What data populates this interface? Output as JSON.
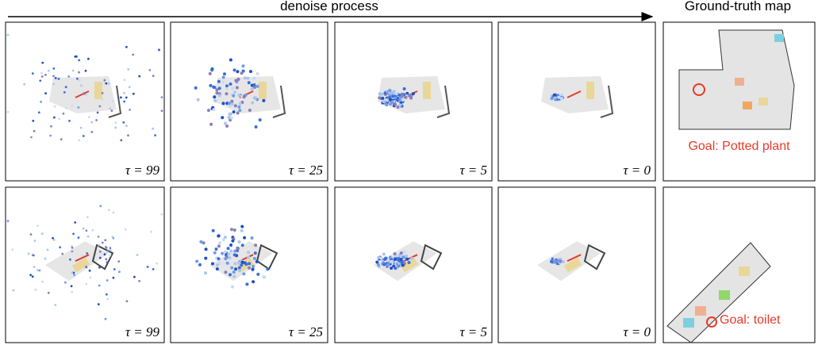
{
  "header": {
    "process_label": "denoise process",
    "gt_label": "Ground-truth map"
  },
  "rows": [
    {
      "panels": [
        {
          "label": "τ = 99"
        },
        {
          "label": "τ = 25"
        },
        {
          "label": "τ = 5"
        },
        {
          "label": "τ = 0"
        }
      ],
      "goal": "Goal: Potted plant"
    },
    {
      "panels": [
        {
          "label": "τ = 99"
        },
        {
          "label": "τ = 25"
        },
        {
          "label": "τ = 5"
        },
        {
          "label": "τ = 0"
        }
      ],
      "goal": "Goal: toilet"
    }
  ]
}
